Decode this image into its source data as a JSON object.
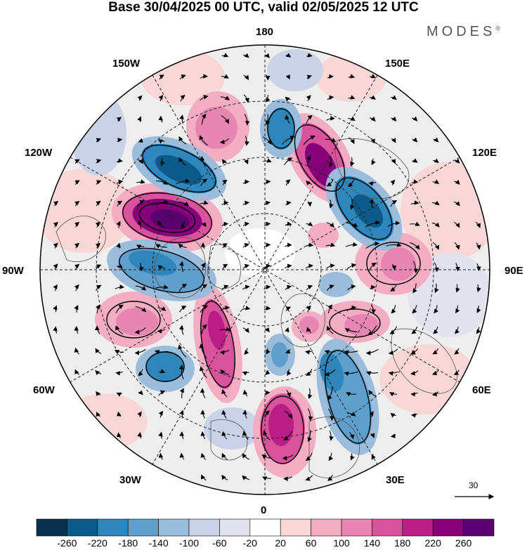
{
  "title": "Base 30/04/2025 00 UTC, valid 02/05/2025 12 UTC",
  "brand": {
    "name": "MODES",
    "mark": "®"
  },
  "meridian_labels": {
    "n180": "180",
    "n150w": "150W",
    "n150e": "150E",
    "n120w": "120W",
    "n120e": "120E",
    "n90w": "90W",
    "n90e": "90E",
    "n60w": "60W",
    "n60e": "60E",
    "n30w": "30W",
    "n30e": "30E",
    "n0": "0"
  },
  "reference_vector": {
    "value": "30"
  },
  "colorbar": {
    "colors": [
      "#08304f",
      "#0c5a8a",
      "#2f86ba",
      "#5f9fcc",
      "#9cbcdb",
      "#c9d2e6",
      "#e3e3ef",
      "#ffffff",
      "#fad7d7",
      "#f3aec3",
      "#e886b2",
      "#d9539c",
      "#b91d86",
      "#86007a",
      "#5a006e"
    ],
    "labels": [
      "-260",
      "-220",
      "-180",
      "-140",
      "-100",
      "-60",
      "-20",
      "20",
      "60",
      "100",
      "140",
      "180",
      "220",
      "260"
    ]
  },
  "field_anomalies": [
    {
      "kind": "positive",
      "strength": "strong",
      "color": "#8a087e"
    },
    {
      "kind": "negative",
      "strength": "strong",
      "color": "#2f6f9f"
    },
    {
      "kind": "positive",
      "strength": "moderate",
      "color": "#e886b2"
    },
    {
      "kind": "negative",
      "strength": "moderate",
      "color": "#6aa3cd"
    }
  ]
}
